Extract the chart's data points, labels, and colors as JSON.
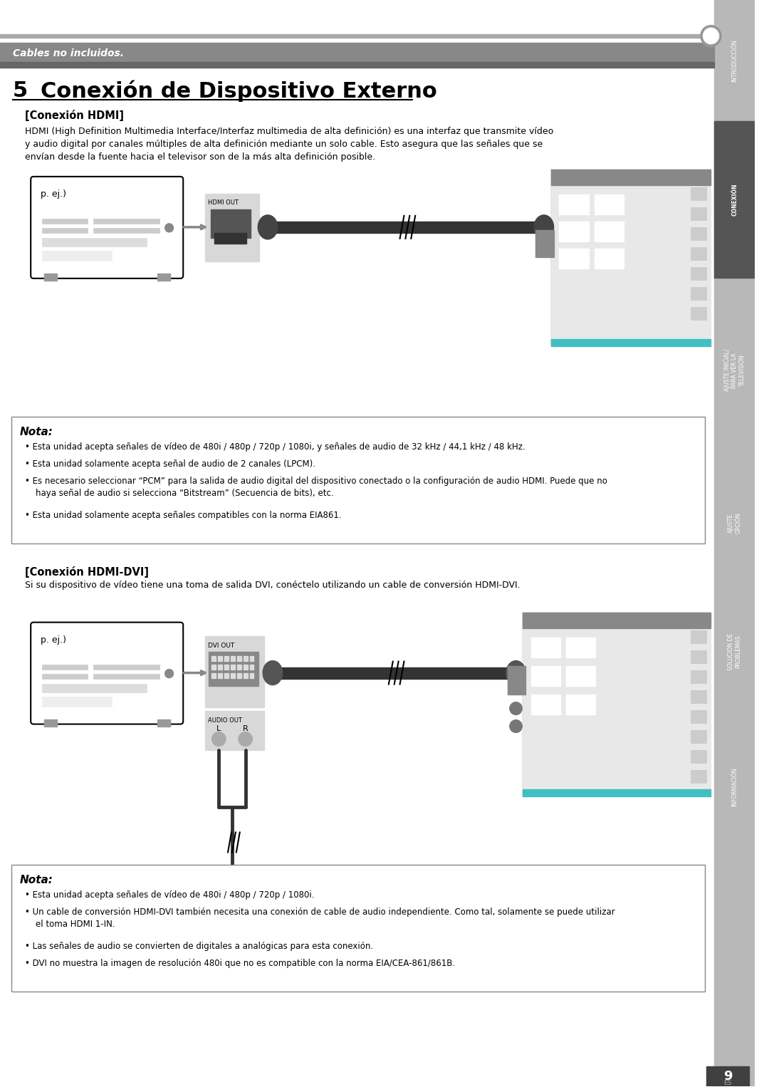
{
  "page_bg": "#ffffff",
  "header_bar_text": "Cables no incluidos.",
  "page_number": "9",
  "section_number": "5",
  "section_title": "Conexión de Dispositivo Externo",
  "hdmi_section_title": "[Conexión HDMI]",
  "hdmi_body": "HDMI (High Definition Multimedia Interface/Interfaz multimedia de alta definición) es una interfaz que transmite vídeo\ny audio digital por canales múltiples de alta definición mediante un solo cable. Esto asegura que las señales que se\nenvían desde la fuente hacia el televisor son de la más alta definición posible.",
  "nota1_title": "Nota:",
  "nota1_bullets": [
    "Esta unidad acepta señales de vídeo de 480i / 480p / 720p / 1080i, y señales de audio de 32 kHz / 44,1 kHz / 48 kHz.",
    "Esta unidad solamente acepta señal de audio de 2 canales (LPCM).",
    "Es necesario seleccionar “PCM” para la salida de audio digital del dispositivo conectado o la configuración de audio HDMI. Puede que no\n    haya señal de audio si selecciona “Bitstream” (Secuencia de bits), etc.",
    "Esta unidad solamente acepta señales compatibles con la norma EIA861."
  ],
  "hdmi_dvi_title": "[Conexión HDMI-DVI]",
  "hdmi_dvi_body": "Si su dispositivo de vídeo tiene una toma de salida DVI, conéctelo utilizando un cable de conversión HDMI-DVI.",
  "nota2_title": "Nota:",
  "nota2_bullets": [
    "Esta unidad acepta señales de vídeo de 480i / 480p / 720p / 1080i.",
    "Un cable de conversión HDMI-DVI también necesita una conexión de cable de audio independiente. Como tal, solamente se puede utilizar\n    el toma HDMI 1-IN.",
    "Las señales de audio se convierten de digitales a analógicas para esta conexión.",
    "DVI no muestra la imagen de resolución 480i que no es compatible con la norma EIA/CEA-861/861B."
  ]
}
